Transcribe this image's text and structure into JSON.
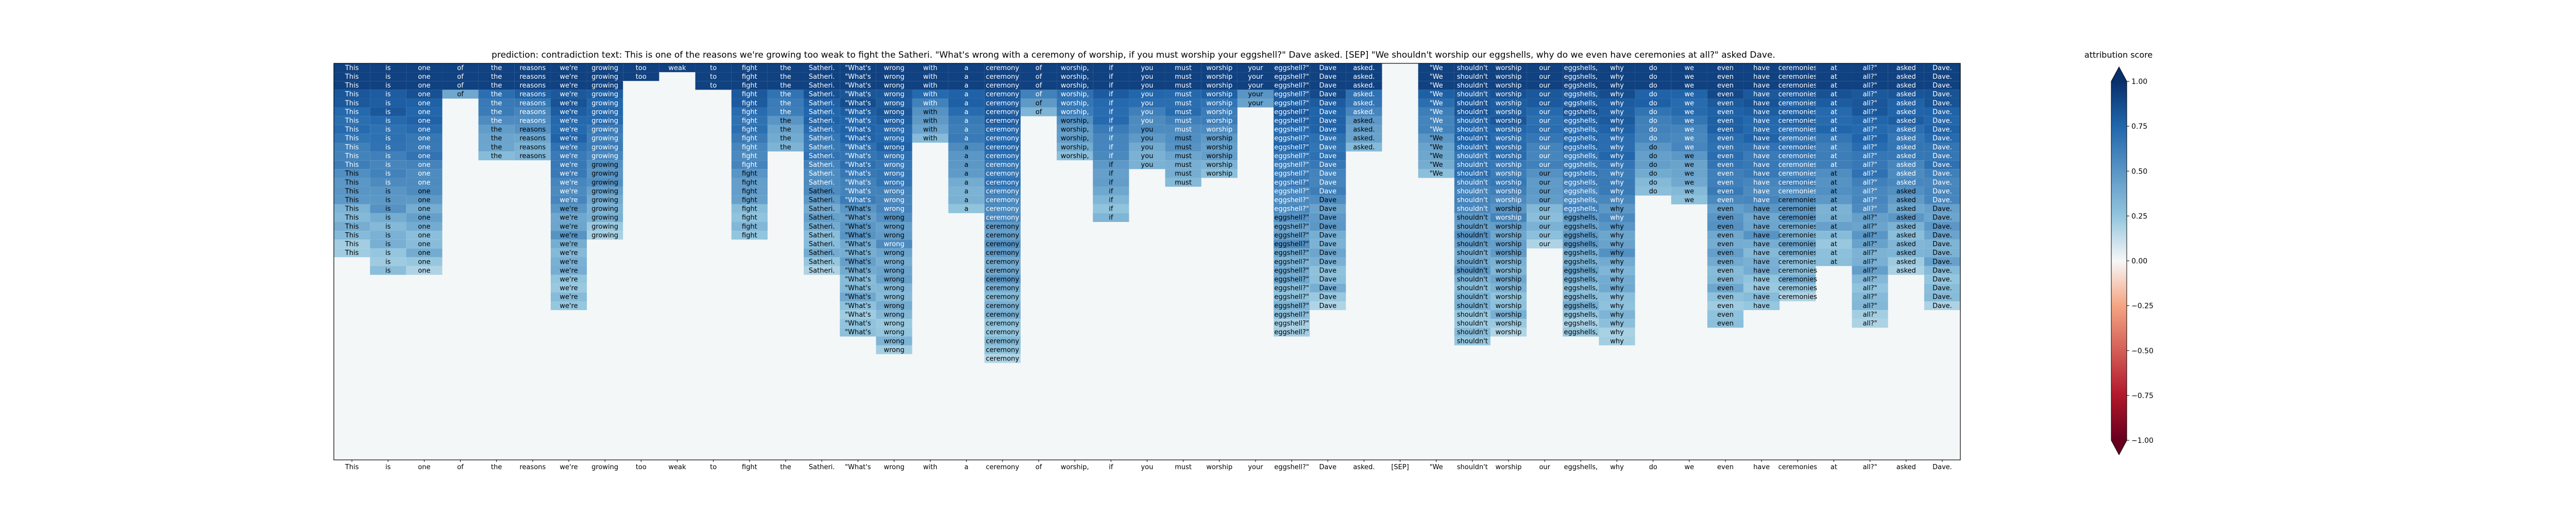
{
  "title": "prediction:  contradiction     text:  This is one of the reasons we're growing too weak to fight the Satheri. \"What's wrong with a ceremony of worship, if you must worship your eggshell?\" Dave asked. [SEP] \"We shouldn't worship our eggshells, why do we even have ceremonies at all?\" asked Dave.",
  "colorbar_label": "attribution score",
  "colorbar_ticks": [
    "1.00",
    "0.75",
    "0.50",
    "0.25",
    "0.00",
    "−0.25",
    "−0.50",
    "−0.75",
    "−1.00"
  ],
  "colors": {
    "background": "#f4f7f7",
    "strong_positive": "#08306b",
    "positive": "#2166ac",
    "light_positive": "#92c5de",
    "neutral": "#f7f7f7",
    "light_negative": "#f4a582",
    "negative": "#b2182b",
    "strong_negative": "#67001f"
  },
  "chart_data": {
    "type": "heatmap",
    "title": "prediction:  contradiction     text:  This is one of the reasons we're growing too weak to fight the Satheri. \"What's wrong with a ceremony of worship, if you must worship your eggshell?\" Dave asked. [SEP] \"We shouldn't worship our eggshells, why do we even have ceremonies at all?\" asked Dave.",
    "prediction": "contradiction",
    "colorbar_label": "attribution score",
    "colorbar_range": [
      -1.0,
      1.0
    ],
    "tokens": [
      "This",
      "is",
      "one",
      "of",
      "the",
      "reasons",
      "we're",
      "growing",
      "too",
      "weak",
      "to",
      "fight",
      "the",
      "Satheri.",
      "\"What's",
      "wrong",
      "with",
      "a",
      "ceremony",
      "of",
      "worship,",
      "if",
      "you",
      "must",
      "worship",
      "your",
      "eggshell?\"",
      "Dave",
      "asked.",
      "[SEP]",
      "\"We",
      "shouldn't",
      "worship",
      "our",
      "eggshells,",
      "why",
      "do",
      "we",
      "even",
      "have",
      "ceremonies",
      "at",
      "all?\"",
      "asked",
      "Dave."
    ],
    "column_depths": [
      22,
      24,
      24,
      4,
      11,
      11,
      28,
      20,
      2,
      1,
      3,
      20,
      10,
      24,
      31,
      33,
      9,
      17,
      34,
      6,
      11,
      18,
      12,
      14,
      13,
      5,
      31,
      28,
      10,
      0,
      13,
      32,
      31,
      21,
      31,
      32,
      15,
      16,
      30,
      28,
      27,
      23,
      30,
      24,
      28
    ]
  }
}
